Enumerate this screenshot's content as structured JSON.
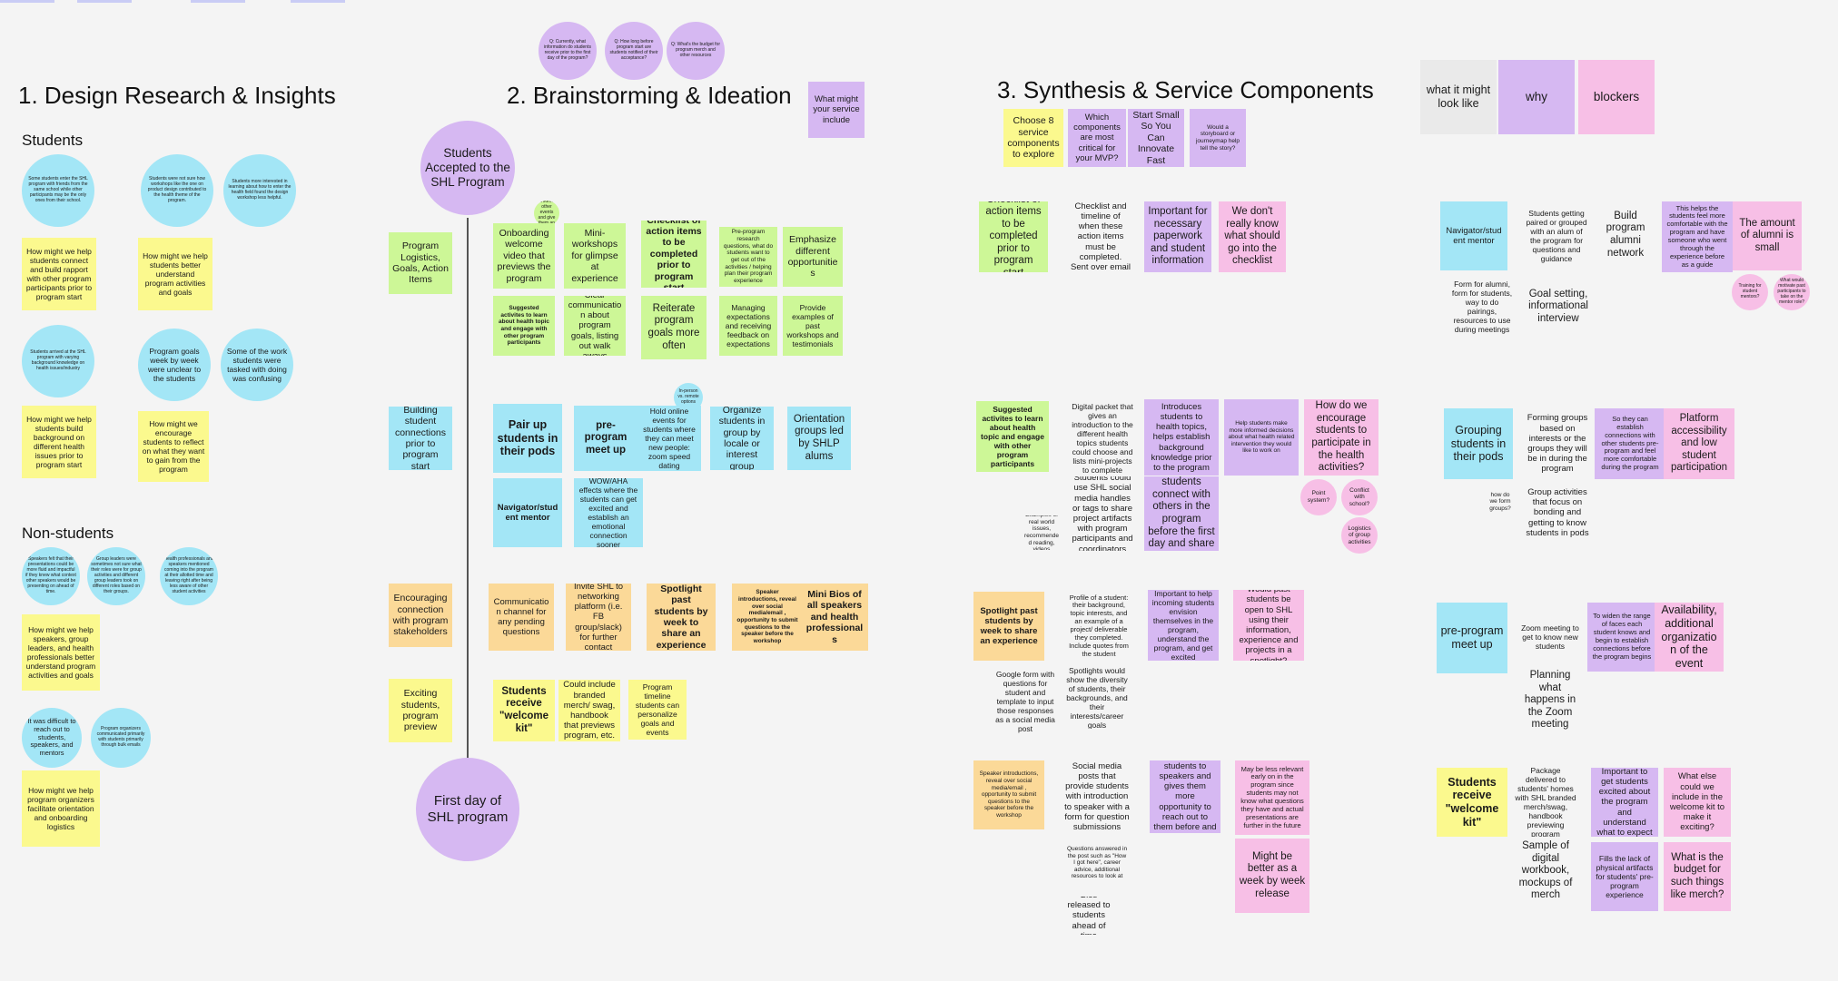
{
  "sections": {
    "research": "1. Design Research & Insights",
    "ideation": "2. Brainstorming & Ideation",
    "synthesis": "3. Synthesis & Service Components"
  },
  "research": {
    "students_heading": "Students",
    "nonstudents_heading": "Non-students",
    "s_c1": "Some students enter the SHL program with friends from the same school while other participants may be the only ones from their school.",
    "s_c2": "Students were not sure how workshops like the one on product design contributed to the health theme of the program.",
    "s_c3": "Students more interested in learning about how to enter the health field found the design workshop less helpful.",
    "s_y1": "How might we help students connect and build rapport with other program participants prior to program start",
    "s_y2": "How might we help students better understand program activities and goals",
    "s_c4": "Students arrived at the SHL program with varying background knowledge on health issues/industry",
    "s_c5": "Program goals week by week were unclear to the students",
    "s_c6": "Some of the work students were tasked with doing was confusing",
    "s_y3": "How might we help students build background on different health issues prior to program start",
    "s_y4": "How might we encourage students to reflect on what they want to gain from the program",
    "n_c1": "Speakers felt that their presentations could be more fluid and impactful if they knew what context other speakers would be presenting on ahead of time.",
    "n_c2": "Group leaders were sometimes not sure what their roles were for group activities and different group leaders took on different roles based on their groups.",
    "n_c3": "Health professionals and speakers mentioned coming into the program at their allotted time and leaving right after being less aware of other student activities",
    "n_y1": "How might we help speakers, group leaders, and health professionals better understand program activities and goals",
    "n_c4": "It was difficult to reach out to students, speakers, and mentors",
    "n_c5": "Program organizers communicated primarily with students primarily through bulk emails",
    "n_y2": "How might we help program organizers facilitate orientation and onboarding logistics"
  },
  "ideation": {
    "q1": "Q: Currently, what information do students receive prior to the first day of the program?",
    "q2": "Q: How long before program start are students notified of their acceptance?",
    "q3": "Q: What's the budget for program merch and other resources",
    "what_might": "What might your service include",
    "start_circle": "Students Accepted to the SHL Program",
    "end_circle": "First day of SHL program",
    "cat_logistics": "Program Logistics, Goals, Action Items",
    "cat_connections": "Building student connections prior to program start",
    "cat_stakeholders": "Encouraging connection with program stakeholders",
    "cat_preview": "Exciting students, program preview",
    "mini_circle": "Align to inform other events and give them an actual",
    "g1": "Onboarding welcome video that previews the program",
    "g2": "Mini-workshops for glimpse at experience",
    "g3": "Checklist of action items to be completed prior to program start",
    "g4": "Pre-program research questions, what do students want to get out of the activities / helping plan their program experience",
    "g5": "Emphasize different opportunities",
    "g6": "Suggested activites to learn about health topic and engage with other program participants",
    "g7": "Clear communication about program goals, listing out walk aways",
    "g8": "Reiterate program goals more often",
    "g9": "Managing expectations and receiving feedback on expectations",
    "g10": "Provide examples of past workshops and testimonials",
    "tiny_circle": "In-person vs. remote options",
    "c1": "Pair up students in their pods",
    "c2": "pre-program meet up",
    "c3": "Hold online events for students where they can meet new people: zoom speed dating",
    "c4": "Organize students in group by locale or interest group",
    "c5": "Orientation groups led by SHLP alums",
    "c6": "Navigator/student mentor",
    "c7": "WOW/AHA effects where the students can get excited and establish an emotional connection sooner",
    "o1": "Communication channel for any pending questions",
    "o2": "Invite SHL to networking platform (i.e. FB group/slack) for further contact",
    "o3": "Spotlight past students by week to share an experience",
    "o4": "Speaker introductions, reveal over social media/email , opportunity to submit questions to the speaker before the workshop",
    "o5": "Mini Bios of all speakers and health professionals",
    "y1": "Students receive \"welcome kit\"",
    "y2": "Could include branded merch/ swag, handbook that previews program, etc.",
    "y3": "Program timeline students can personalize goals and events"
  },
  "synthesis": {
    "choose": "Choose 8 service components to explore",
    "which": "Which components are most critical for your MVP?",
    "start_small": "Start Small So You Can Innovate Fast",
    "storyboard": "Would a storyboard or journeymap help tell the story?",
    "r1_a": "Checklist of action items to be completed prior to program start",
    "r1_b": "Checklist and timeline of when these action items must be completed. Sent over email",
    "r1_c": "Important for necessary paperwork and student information",
    "r1_d": "We don't really know what should go into the checklist",
    "r2_a": "Suggested activites to learn about health topic and engage with other program participants",
    "r2_b": "Digital packet that gives an introduction to the different health topics students could choose and lists mini-projects to complete",
    "r2_c": "Introduces students to health topics, helps establish background knowledge prior to the program",
    "r2_d": "Help students make more informed decisions about what health related intervention they would like to work on",
    "r2_e": "How do we encourage students to participate in the health activities?",
    "r2_f": "Students could use SHL social media handles or tags to share project artifacts with program participants and coordinators",
    "r2_g": "Helps students connect with others in the program before the first day and share ideas",
    "r2_h": "Examples of real world issues, recommended reading, videos",
    "r2_p1": "Point system?",
    "r2_p2": "Conflict with school?",
    "r2_p3": "Logistics of group activities",
    "r3_a": "Spotlight past students by week to share an experience",
    "r3_b": "Profile of a student: their background, topic interests, and an example of a project/ deliverable they completed. Include quotes from the student",
    "r3_c": "Important to help incoming students envision themselves in the program, understand the program, and get excited",
    "r3_d": "Would past students be open to SHL using their information, experience and projects in a spotlight?",
    "r3_e": "Google form with questions for student and template to input those responses as a social media post",
    "r3_f": "Spotlights would show the diversity of students, their backgrounds, and their interests/career goals",
    "r4_a": "Speaker introductions, reveal over social media/email , opportunity to submit questions to the speaker before the workshop",
    "r4_b": "Social media posts that provide students with introduction to speaker with a form for question submissions",
    "r4_c": "Connects students to speakers and gives them more opportunity to reach out to them before and after sessions",
    "r4_d": "May be less relevant early on in the program since students may not know what questions they have and actual presentations are further in the future",
    "r4_e": "Questions answered in the post such as \"How I got here\", career advice, additional resources to look at",
    "r4_f": "Might be better as a week by week release",
    "r4_g": "Bios released to students ahead of time"
  },
  "right": {
    "h1": "what it might look like",
    "h2": "why",
    "h3": "blockers",
    "a1": "Navigator/student mentor",
    "a2": "Students getting paired or grouped with an alum of the program for questions and guidance",
    "a3": "Build program alumni network",
    "a4": "This helps the students feel more comfortable with the program and have someone who went through the experience before as a guide",
    "a5": "The amount of alumni is small",
    "a6": "Form for alumni, form for students, way to do pairings, resources to use during meetings",
    "a7": "Goal setting, informational interview",
    "a8": "Training for student mentors?",
    "a9": "What would motivate past participants to take on the mentor role?",
    "b1": "Grouping students in their pods",
    "b2": "Forming groups based on interests or the groups they will be in during the program",
    "b3": "So they can establish connections with other students pre-program and feel more comfortable during the program",
    "b4": "Platform accessibility and low student participation",
    "b5": "how do we form groups?",
    "b6": "Group activities that focus on bonding and getting to know students in pods",
    "c1": "pre-program meet up",
    "c2": "Zoom meeting to get to know new students",
    "c3": "To widen the range of faces each student knows and begin to establish connections before the program begins",
    "c4": "Availability, additional organization of the event",
    "c5": "Planning what happens in the Zoom meeting",
    "d1": "Students receive \"welcome kit\"",
    "d2": "Package delivered to students' homes with SHL branded merch/swag, handbook previewing program",
    "d3": "Important to get students excited about the program and understand what to expect",
    "d4": "What else could we include in the welcome kit to make it exciting?",
    "d5": "Sample of digital workbook, mockups of merch",
    "d6": "Fills the lack of physical artifacts for students' pre-program experience",
    "d7": "What is the budget for such things like merch?"
  }
}
